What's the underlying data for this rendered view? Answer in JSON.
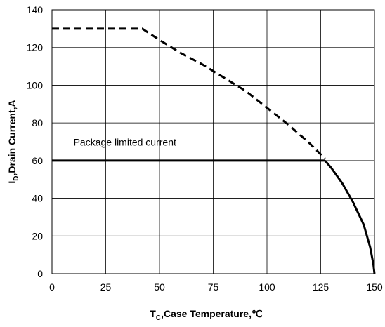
{
  "chart_data": {
    "type": "line",
    "title": "",
    "xlabel": {
      "main": "T",
      "sub": "C",
      "rest": ",Case Temperature,℃"
    },
    "ylabel": {
      "main": "I",
      "sub": "D",
      "rest": ",Drain Current,A"
    },
    "xlim": [
      0,
      150
    ],
    "ylim": [
      0,
      140
    ],
    "xticks": [
      0,
      25,
      50,
      75,
      100,
      125,
      150
    ],
    "yticks": [
      0,
      20,
      40,
      60,
      80,
      100,
      120,
      140
    ],
    "grid": true,
    "annotations": [
      {
        "text": "Package limited current",
        "x": 10,
        "y": 68
      }
    ],
    "series": [
      {
        "style": "dashed",
        "color": "#000000",
        "x": [
          0,
          42,
          50,
          60,
          70,
          80,
          90,
          100,
          110,
          120,
          127
        ],
        "y": [
          130,
          130,
          124,
          117,
          111,
          104,
          97,
          88,
          79,
          69,
          61
        ]
      },
      {
        "style": "solid",
        "color": "#000000",
        "x": [
          0,
          127
        ],
        "y": [
          60,
          60
        ]
      },
      {
        "style": "solid",
        "color": "#000000",
        "x": [
          127,
          130,
          135,
          140,
          145,
          148,
          149.5,
          150
        ],
        "y": [
          60,
          56,
          48,
          38,
          26,
          14,
          5,
          0
        ]
      }
    ]
  }
}
